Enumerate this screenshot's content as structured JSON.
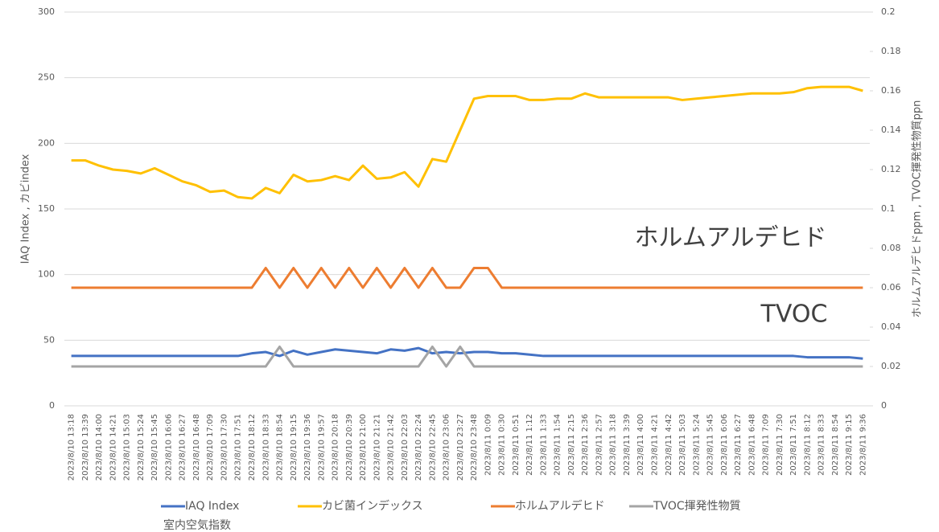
{
  "chart_data": {
    "type": "line",
    "ylabel": "IAQ Index , カビindex",
    "y2label": "ホルムアルデヒドppm , TVOC揮発性物質ppn",
    "annotations": [
      "ホルムアルデヒド",
      "TVOC"
    ],
    "categories": [
      "2023/8/10 13:18",
      "2023/8/10 13:39",
      "2023/8/10 14:00",
      "2023/8/10 14:21",
      "2023/8/10 15:03",
      "2023/8/10 15:24",
      "2023/8/10 15:45",
      "2023/8/10 16:06",
      "2023/8/10 16:27",
      "2023/8/10 16:48",
      "2023/8/10 17:09",
      "2023/8/10 17:30",
      "2023/8/10 17:51",
      "2023/8/10 18:12",
      "2023/8/10 18:33",
      "2023/8/10 18:54",
      "2023/8/10 19:15",
      "2023/8/10 19:36",
      "2023/8/10 19:57",
      "2023/8/10 20:18",
      "2023/8/10 20:39",
      "2023/8/10 21:00",
      "2023/8/10 21:21",
      "2023/8/10 21:42",
      "2023/8/10 22:03",
      "2023/8/10 22:24",
      "2023/8/10 22:45",
      "2023/8/10 23:06",
      "2023/8/10 23:27",
      "2023/8/10 23:48",
      "2023/8/11 0:09",
      "2023/8/11 0:30",
      "2023/8/11 0:51",
      "2023/8/11 1:12",
      "2023/8/11 1:33",
      "2023/8/11 1:54",
      "2023/8/11 2:15",
      "2023/8/11 2:36",
      "2023/8/11 2:57",
      "2023/8/11 3:18",
      "2023/8/11 3:39",
      "2023/8/11 4:00",
      "2023/8/11 4:21",
      "2023/8/11 4:42",
      "2023/8/11 5:03",
      "2023/8/11 5:24",
      "2023/8/11 5:45",
      "2023/8/11 6:06",
      "2023/8/11 6:27",
      "2023/8/11 6:48",
      "2023/8/11 7:09",
      "2023/8/11 7:30",
      "2023/8/11 7:51",
      "2023/8/11 8:12",
      "2023/8/11 8:33",
      "2023/8/11 8:54",
      "2023/8/11 9:15",
      "2023/8/11 9:36"
    ],
    "series": [
      {
        "name": "IAQ Index",
        "legend_sublabel": "室内空気指数",
        "color": "#4472c4",
        "axis": "y",
        "values": [
          38,
          38,
          38,
          38,
          38,
          38,
          38,
          38,
          38,
          38,
          38,
          38,
          38,
          40,
          41,
          38,
          42,
          39,
          41,
          43,
          42,
          41,
          40,
          43,
          42,
          44,
          40,
          41,
          40,
          41,
          41,
          40,
          40,
          39,
          38,
          38,
          38,
          38,
          38,
          38,
          38,
          38,
          38,
          38,
          38,
          38,
          38,
          38,
          38,
          38,
          38,
          38,
          38,
          37,
          37,
          37,
          37,
          36
        ]
      },
      {
        "name": "カビ菌インデックス",
        "color": "#ffc000",
        "axis": "y",
        "values": [
          187,
          187,
          183,
          180,
          179,
          177,
          181,
          176,
          171,
          168,
          163,
          164,
          159,
          158,
          166,
          162,
          176,
          171,
          172,
          175,
          172,
          183,
          173,
          174,
          178,
          167,
          188,
          186,
          210,
          234,
          236,
          236,
          236,
          233,
          233,
          234,
          234,
          238,
          235,
          235,
          235,
          235,
          235,
          235,
          233,
          234,
          235,
          236,
          237,
          238,
          238,
          238,
          239,
          242,
          243,
          243,
          243,
          240
        ]
      },
      {
        "name": "ホルムアルデヒド",
        "color": "#ed7d31",
        "axis": "y2",
        "values": [
          0.06,
          0.06,
          0.06,
          0.06,
          0.06,
          0.06,
          0.06,
          0.06,
          0.06,
          0.06,
          0.06,
          0.06,
          0.06,
          0.06,
          0.07,
          0.06,
          0.07,
          0.06,
          0.07,
          0.06,
          0.07,
          0.06,
          0.07,
          0.06,
          0.07,
          0.06,
          0.07,
          0.06,
          0.06,
          0.07,
          0.07,
          0.06,
          0.06,
          0.06,
          0.06,
          0.06,
          0.06,
          0.06,
          0.06,
          0.06,
          0.06,
          0.06,
          0.06,
          0.06,
          0.06,
          0.06,
          0.06,
          0.06,
          0.06,
          0.06,
          0.06,
          0.06,
          0.06,
          0.06,
          0.06,
          0.06,
          0.06,
          0.06
        ]
      },
      {
        "name": "TVOC揮発性物質",
        "color": "#a5a5a5",
        "axis": "y2",
        "values": [
          0.02,
          0.02,
          0.02,
          0.02,
          0.02,
          0.02,
          0.02,
          0.02,
          0.02,
          0.02,
          0.02,
          0.02,
          0.02,
          0.02,
          0.02,
          0.03,
          0.02,
          0.02,
          0.02,
          0.02,
          0.02,
          0.02,
          0.02,
          0.02,
          0.02,
          0.02,
          0.03,
          0.02,
          0.03,
          0.02,
          0.02,
          0.02,
          0.02,
          0.02,
          0.02,
          0.02,
          0.02,
          0.02,
          0.02,
          0.02,
          0.02,
          0.02,
          0.02,
          0.02,
          0.02,
          0.02,
          0.02,
          0.02,
          0.02,
          0.02,
          0.02,
          0.02,
          0.02,
          0.02,
          0.02,
          0.02,
          0.02,
          0.02
        ]
      }
    ],
    "ylim": [
      0,
      300
    ],
    "yticks": [
      0,
      50,
      100,
      150,
      200,
      250,
      300
    ],
    "y2lim": [
      0,
      0.2
    ],
    "y2ticks": [
      0,
      0.02,
      0.04,
      0.06,
      0.08,
      0.1,
      0.12,
      0.14,
      0.16,
      0.18,
      0.2
    ],
    "grid": true,
    "legend": "bottom"
  }
}
